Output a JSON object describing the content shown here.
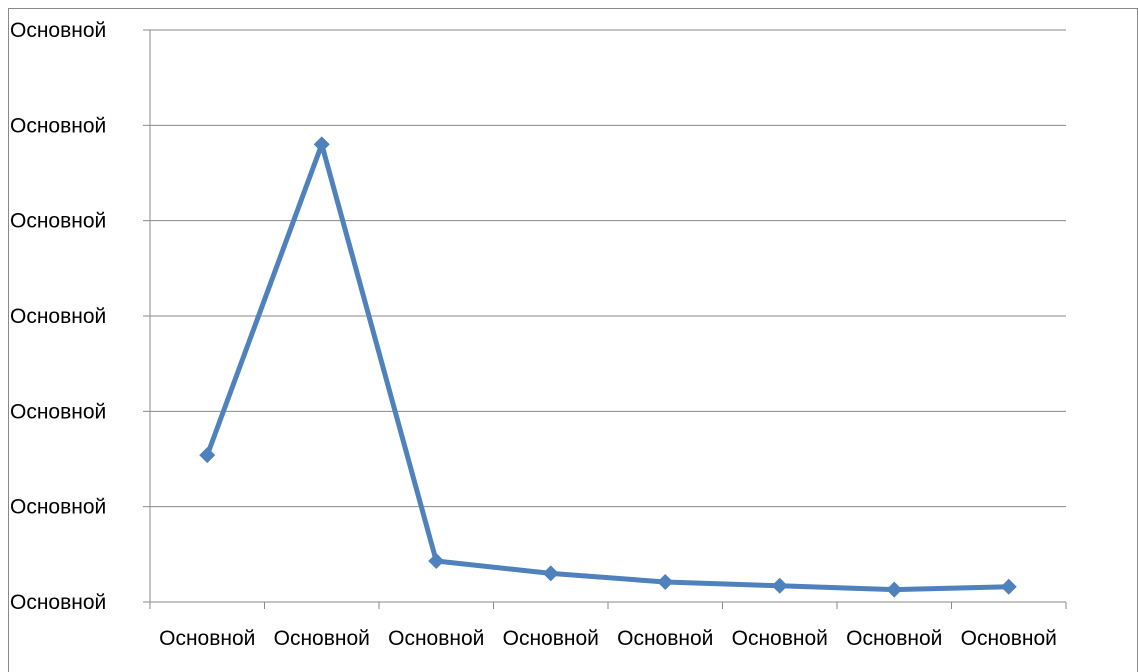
{
  "chart_data": {
    "type": "line",
    "title": "",
    "xlabel": "",
    "ylabel": "",
    "categories": [
      "Основной",
      "Основной",
      "Основной",
      "Основной",
      "Основной",
      "Основной",
      "Основной",
      "Основной"
    ],
    "y_tick_labels": [
      "Основной",
      "Основной",
      "Основной",
      "Основной",
      "Основной",
      "Основной",
      "Основной"
    ],
    "ylim": [
      0,
      6
    ],
    "grid": true,
    "legend": "none",
    "series": [
      {
        "values": [
          1.54,
          4.8,
          0.43,
          0.3,
          0.21,
          0.17,
          0.13,
          0.16
        ],
        "color": "#4f81bd",
        "marker": "diamond"
      }
    ]
  }
}
